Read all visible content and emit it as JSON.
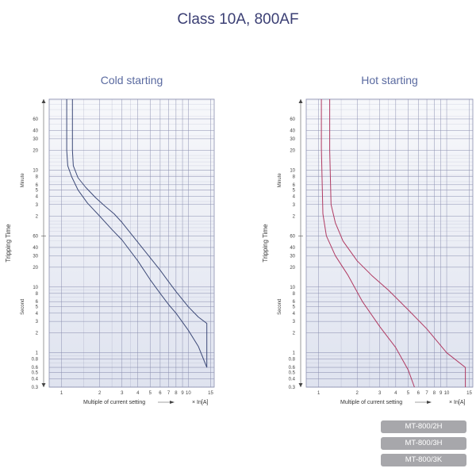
{
  "title": "Class 10A, 800AF",
  "colors": {
    "title": "#3b3f74",
    "subtitle": "#5a6aa0",
    "grid": "#8b8fb0",
    "plot_bg_top": "#f7f8fb",
    "plot_bg_bottom": "#dfe3ef",
    "cold_curve": "#3d4a78",
    "hot_curve": "#b03a62",
    "button_bg": "#a7a7ab",
    "button_text": "#ffffff"
  },
  "chart_data": [
    {
      "type": "line",
      "title": "Cold starting",
      "xlabel": "Multiple of current setting",
      "xunit": "× In[A]",
      "ylabel": "Tripping Time",
      "x_scale": "log",
      "y_scale": "log",
      "xlim": [
        0.8,
        16
      ],
      "x_ticks": [
        "1",
        "2",
        "3",
        "4",
        "5",
        "6",
        "7",
        "8",
        "9",
        "10",
        "15"
      ],
      "y_minute_ticks": [
        "60",
        "40",
        "30",
        "20",
        "10",
        "8",
        "6",
        "5",
        "4",
        "3",
        "2"
      ],
      "y_second_ticks": [
        "60",
        "40",
        "30",
        "20",
        "10",
        "8",
        "6",
        "5",
        "4",
        "3",
        "2",
        "1",
        "0.8",
        "0.6",
        "0.5",
        "0.4",
        "0.3"
      ],
      "y_minute_label": "Minute",
      "y_second_label": "Second",
      "series": [
        {
          "x": [
            1.1,
            1.1,
            1.12,
            1.2,
            1.35,
            1.6,
            2.0,
            2.5,
            3.0,
            4.0,
            5.0,
            6.0,
            7.0,
            8.0,
            10.0,
            12.0,
            14.0,
            14.0
          ],
          "y_seconds": [
            7200,
            1200,
            700,
            480,
            300,
            190,
            120,
            75,
            52,
            25,
            13,
            8,
            5.4,
            4,
            2.2,
            1.25,
            0.6,
            0.6
          ]
        },
        {
          "x": [
            1.22,
            1.22,
            1.24,
            1.35,
            1.55,
            1.85,
            2.2,
            2.6,
            3.0,
            4.0,
            5.0,
            6.0,
            7.0,
            8.0,
            10.0,
            12.0,
            14.0,
            14.0
          ],
          "y_seconds": [
            7200,
            1200,
            700,
            460,
            330,
            230,
            170,
            130,
            96,
            48,
            28,
            18,
            12,
            8.5,
            5,
            3.5,
            2.8,
            0.6
          ]
        }
      ]
    },
    {
      "type": "line",
      "title": "Hot starting",
      "xlabel": "Multiple of current setting",
      "xunit": "× In[A]",
      "ylabel": "Tripping Time",
      "x_scale": "log",
      "y_scale": "log",
      "xlim": [
        0.8,
        16
      ],
      "x_ticks": [
        "1",
        "2",
        "3",
        "4",
        "5",
        "6",
        "7",
        "8",
        "9",
        "10",
        "15"
      ],
      "y_minute_ticks": [
        "60",
        "40",
        "30",
        "20",
        "10",
        "8",
        "6",
        "5",
        "4",
        "3",
        "2"
      ],
      "y_second_ticks": [
        "60",
        "40",
        "30",
        "20",
        "10",
        "8",
        "6",
        "5",
        "4",
        "3",
        "2",
        "1",
        "0.8",
        "0.6",
        "0.5",
        "0.4",
        "0.3"
      ],
      "y_minute_label": "Minute",
      "y_second_label": "Second",
      "series": [
        {
          "x": [
            1.05,
            1.05,
            1.08,
            1.15,
            1.35,
            1.7,
            2.2,
            3.0,
            4.0,
            5.0,
            5.6
          ],
          "y_seconds": [
            7200,
            1300,
            130,
            60,
            30,
            15,
            6,
            2.5,
            1.2,
            0.55,
            0.3
          ]
        },
        {
          "x": [
            1.22,
            1.22,
            1.25,
            1.35,
            1.55,
            2.0,
            2.6,
            3.5,
            5.0,
            7.0,
            10.0,
            14.0,
            14.0
          ],
          "y_seconds": [
            7200,
            1200,
            180,
            95,
            50,
            25,
            15,
            9,
            4.5,
            2.3,
            1.0,
            0.6,
            0.3
          ]
        }
      ]
    }
  ],
  "model_buttons": [
    "MT-800/2H",
    "MT-800/3H",
    "MT-800/3K"
  ]
}
